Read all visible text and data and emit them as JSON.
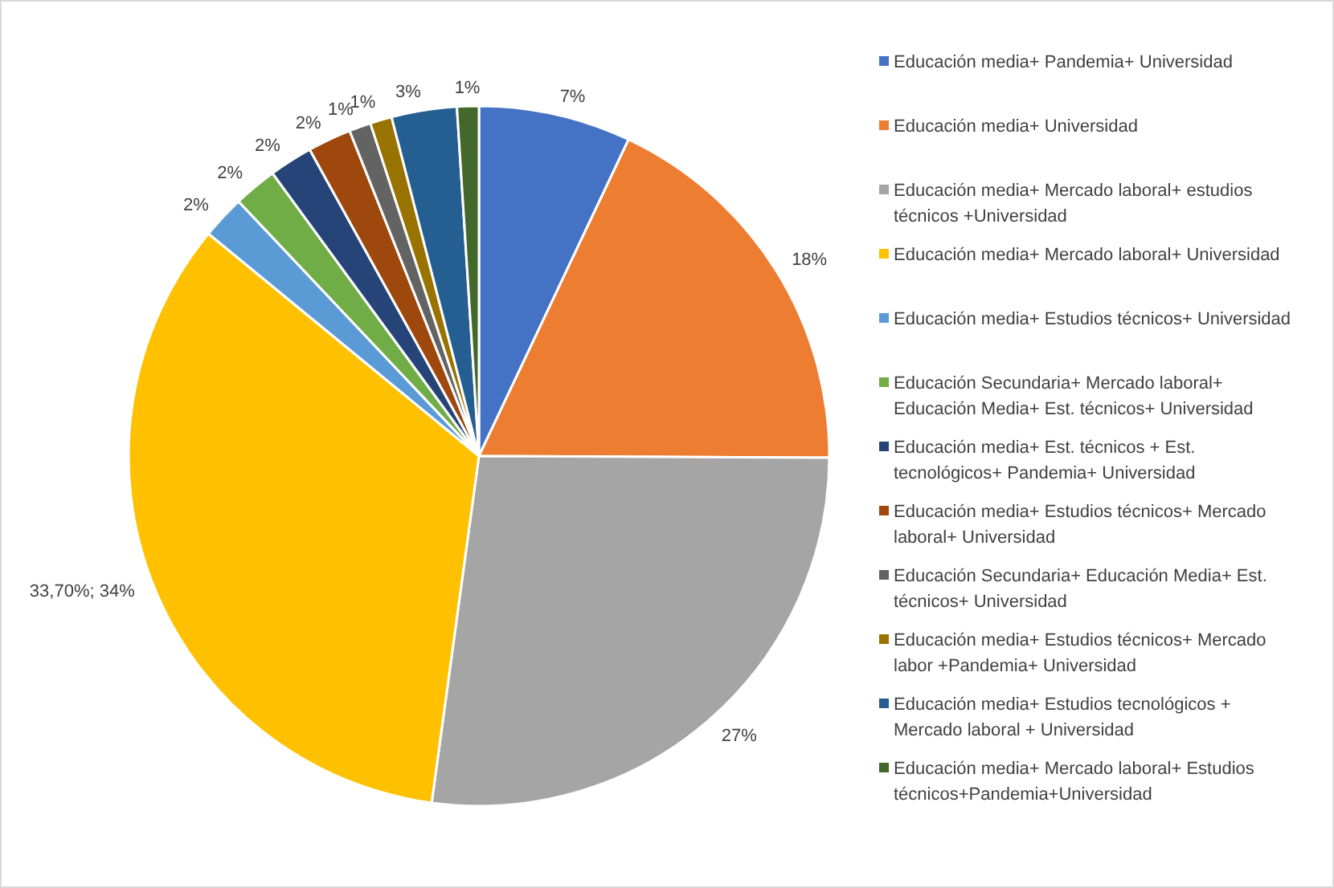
{
  "chart_data": {
    "type": "pie",
    "categories": [
      "Educación media+ Pandemia+ Universidad",
      "Educación media+ Universidad",
      "Educación media+ Mercado laboral+ estudios técnicos +Universidad",
      "Educación media+ Mercado laboral+ Universidad",
      "Educación media+ Estudios técnicos+ Universidad",
      "Educación Secundaria+ Mercado laboral+ Educación Media+ Est. técnicos+ Universidad",
      "Educación media+ Est. técnicos + Est. tecnológicos+ Pandemia+ Universidad",
      "Educación media+ Estudios técnicos+ Mercado laboral+ Universidad",
      "Educación Secundaria+ Educación Media+ Est. técnicos+ Universidad",
      "Educación media+ Estudios técnicos+ Mercado labor +Pandemia+ Universidad",
      "Educación media+ Estudios tecnológicos + Mercado laboral + Universidad",
      "Educación media+ Mercado laboral+ Estudios técnicos+Pandemia+Universidad"
    ],
    "values": [
      7,
      18,
      27,
      33.7,
      2,
      2,
      2,
      2,
      1,
      1,
      3,
      1
    ],
    "value_labels": [
      "7%",
      "18%",
      "27%",
      "33,70%; 34%",
      "2%",
      "2%",
      "2%",
      "2%",
      "1%",
      "1%",
      "3%",
      "1%"
    ],
    "colors": [
      "#4472c4",
      "#ed7d31",
      "#a5a5a5",
      "#ffc000",
      "#5b9bd5",
      "#70ad47",
      "#264478",
      "#9e480e",
      "#636363",
      "#997300",
      "#255e91",
      "#43682b"
    ],
    "legend": "right"
  }
}
